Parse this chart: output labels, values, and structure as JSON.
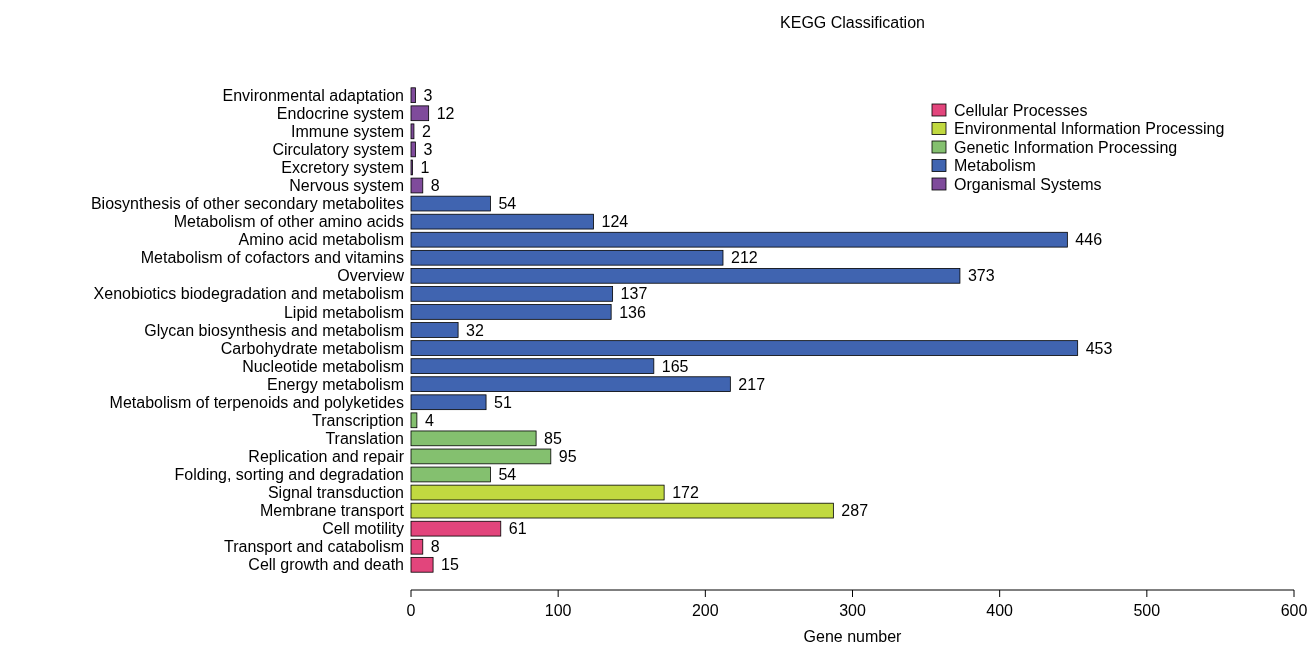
{
  "chart_data": {
    "type": "bar",
    "orientation": "horizontal",
    "title": "KEGG Classification",
    "xlabel": "Gene number",
    "xlim": [
      0,
      600
    ],
    "xticks": [
      0,
      100,
      200,
      300,
      400,
      500,
      600
    ],
    "data_labels": true,
    "legend": "top right",
    "grid": false,
    "categories": [
      "Environmental adaptation",
      "Endocrine system",
      "Immune system",
      "Circulatory system",
      "Excretory system",
      "Nervous system",
      "Biosynthesis of other secondary metabolites",
      "Metabolism of other amino acids",
      "Amino acid metabolism",
      "Metabolism of cofactors and vitamins",
      "Overview",
      "Xenobiotics biodegradation and metabolism",
      "Lipid metabolism",
      "Glycan biosynthesis and metabolism",
      "Carbohydrate metabolism",
      "Nucleotide metabolism",
      "Energy metabolism",
      "Metabolism of terpenoids and polyketides",
      "Transcription",
      "Translation",
      "Replication and repair",
      "Folding, sorting and degradation",
      "Signal transduction",
      "Membrane transport",
      "Cell motility",
      "Transport and catabolism",
      "Cell growth and death"
    ],
    "series": [
      {
        "name": "Cellular Processes",
        "color": "#e2457c",
        "values": [
          null,
          null,
          null,
          null,
          null,
          null,
          null,
          null,
          null,
          null,
          null,
          null,
          null,
          null,
          null,
          null,
          null,
          null,
          null,
          null,
          null,
          null,
          null,
          null,
          61,
          8,
          15
        ]
      },
      {
        "name": "Environmental Information Processing",
        "color": "#c1d940",
        "values": [
          null,
          null,
          null,
          null,
          null,
          null,
          null,
          null,
          null,
          null,
          null,
          null,
          null,
          null,
          null,
          null,
          null,
          null,
          null,
          null,
          null,
          null,
          172,
          287,
          null,
          null,
          null
        ]
      },
      {
        "name": "Genetic Information Processing",
        "color": "#84c06f",
        "values": [
          null,
          null,
          null,
          null,
          null,
          null,
          null,
          null,
          null,
          null,
          null,
          null,
          null,
          null,
          null,
          null,
          null,
          null,
          4,
          85,
          95,
          54,
          null,
          null,
          null,
          null,
          null
        ]
      },
      {
        "name": "Metabolism",
        "color": "#4064b0",
        "values": [
          null,
          null,
          null,
          null,
          null,
          null,
          54,
          124,
          446,
          212,
          373,
          137,
          136,
          32,
          453,
          165,
          217,
          51,
          null,
          null,
          null,
          null,
          null,
          null,
          null,
          null,
          null
        ]
      },
      {
        "name": "Organismal Systems",
        "color": "#7f4b9b",
        "values": [
          3,
          12,
          2,
          3,
          1,
          8,
          null,
          null,
          null,
          null,
          null,
          null,
          null,
          null,
          null,
          null,
          null,
          null,
          null,
          null,
          null,
          null,
          null,
          null,
          null,
          null,
          null
        ]
      }
    ]
  }
}
